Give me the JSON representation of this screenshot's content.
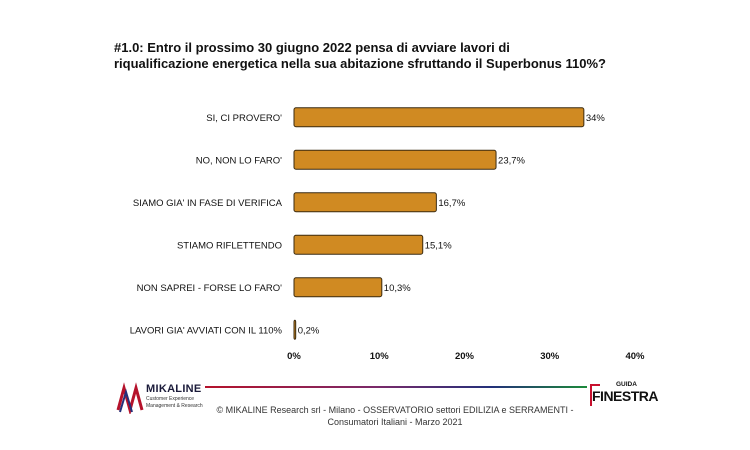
{
  "title": {
    "line1": "#1.0: Entro il prossimo 30 giugno 2022 pensa di avviare lavori di",
    "line2": "riqualificazione energetica nella sua abitazione sfruttando il Superbonus 110%?"
  },
  "chart_data": {
    "type": "bar",
    "orientation": "horizontal",
    "categories": [
      "SI, CI PROVERO'",
      "NO, NON LO FARO'",
      "SIAMO GIA' IN FASE DI VERIFICA",
      "STIAMO RIFLETTENDO",
      "NON SAPREI - FORSE LO FARO'",
      "LAVORI GIA' AVVIATI CON IL 110%"
    ],
    "values": [
      34,
      23.7,
      16.7,
      15.1,
      10.3,
      0.2
    ],
    "value_labels": [
      "34%",
      "23,7%",
      "16,7%",
      "15,1%",
      "10,3%",
      "0,2%"
    ],
    "xlim": [
      0,
      40
    ],
    "ticks": [
      0,
      10,
      20,
      30,
      40
    ],
    "tick_labels": [
      "0%",
      "10%",
      "20%",
      "30%",
      "40%"
    ],
    "bar_color": "#d08a22",
    "bar_border": "#3a2a10",
    "grid": false
  },
  "footer": {
    "line1": "© MIKALINE Research srl - Milano - OSSERVATORIO settori EDILIZIA e SERRAMENTI -",
    "line2": "Consumatori Italiani - Marzo 2021"
  },
  "logo_left": {
    "brand": "MIKALINE",
    "tag1": "Customer Experience",
    "tag2": "Management & Research"
  },
  "logo_right": {
    "top": "GUIDA",
    "main": "FINESTRA"
  }
}
